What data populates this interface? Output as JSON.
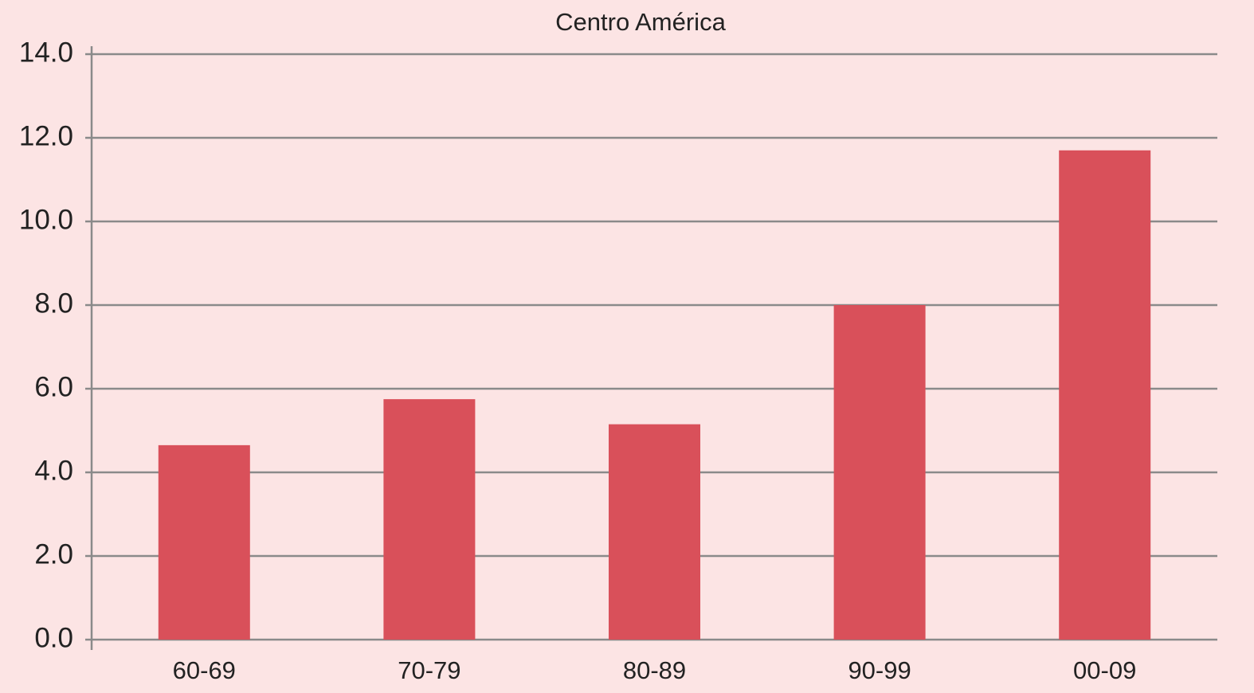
{
  "chart_data": {
    "type": "bar",
    "title": "Centro América",
    "categories": [
      "60-69",
      "70-79",
      "80-89",
      "90-99",
      "00-09"
    ],
    "values": [
      4.65,
      5.75,
      5.15,
      8.0,
      11.7
    ],
    "color": "#d9505a",
    "ylim": [
      0,
      14
    ],
    "yticks": [
      {
        "value": 0,
        "label": "0.0"
      },
      {
        "value": 2,
        "label": "2.0"
      },
      {
        "value": 4,
        "label": "4.0"
      },
      {
        "value": 6,
        "label": "6.0"
      },
      {
        "value": 8,
        "label": "8.0"
      },
      {
        "value": 10,
        "label": "10.0"
      },
      {
        "value": 12,
        "label": "12.0"
      },
      {
        "value": 14,
        "label": "14.0"
      }
    ],
    "grid": true
  }
}
